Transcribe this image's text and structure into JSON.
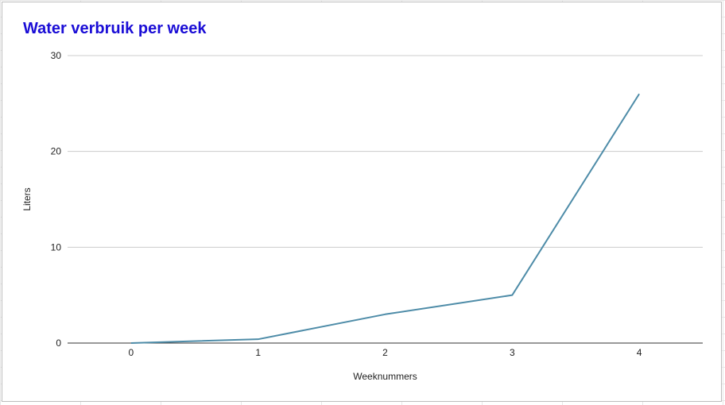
{
  "chart_data": {
    "type": "line",
    "title": "Water verbruik per week",
    "xlabel": "Weeknummers",
    "ylabel": "Liters",
    "x": [
      0,
      1,
      2,
      3,
      4
    ],
    "series": [
      {
        "values": [
          0,
          0.4,
          3,
          5,
          26
        ]
      }
    ],
    "xlim": [
      -0.5,
      4.5
    ],
    "ylim": [
      0,
      30
    ],
    "yticks": [
      0,
      10,
      20,
      30
    ],
    "xticks": [
      0,
      1,
      2,
      3,
      4
    ],
    "grid": true,
    "line_color": "#4e8ca8",
    "title_color": "#1a0dd6"
  }
}
